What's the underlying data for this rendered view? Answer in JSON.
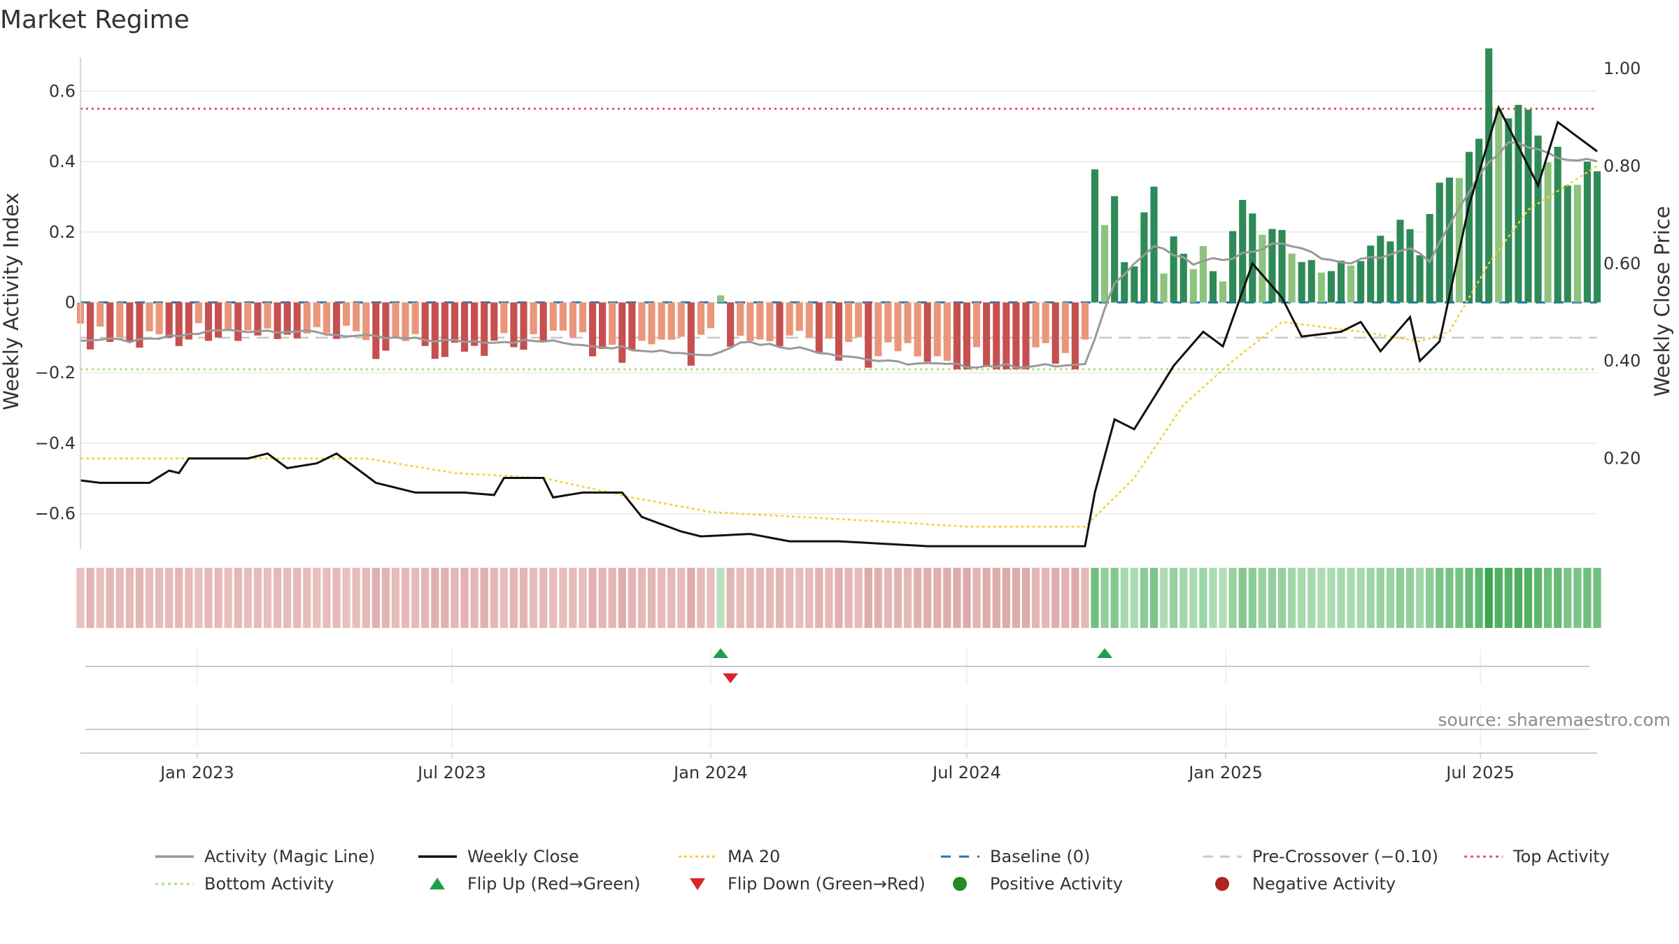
{
  "title": "Market Regime",
  "source": "source: sharemaestro.com",
  "chart_data": {
    "type": "bar",
    "x_range": [
      "2022-10-10",
      "2025-09-22"
    ],
    "x_ticks": [
      {
        "date": "2023-01-01",
        "label": "Jan 2023"
      },
      {
        "date": "2023-07-01",
        "label": "Jul 2023"
      },
      {
        "date": "2024-01-01",
        "label": "Jan 2024"
      },
      {
        "date": "2024-07-01",
        "label": "Jul 2024"
      },
      {
        "date": "2025-01-01",
        "label": "Jan 2025"
      },
      {
        "date": "2025-07-01",
        "label": "Jul 2025"
      }
    ],
    "left_axis": {
      "label": "Weekly Activity Index",
      "range": [
        -0.7,
        0.7
      ],
      "ticks": [
        0.6,
        0.4,
        0.2,
        0,
        -0.2,
        -0.4,
        -0.6
      ],
      "tick_labels": [
        "0.6",
        "0.4",
        "0.2",
        "0",
        "−0.2",
        "−0.4",
        "−0.6"
      ]
    },
    "right_axis": {
      "label": "Weekly Close Price",
      "range": [
        0.0,
        1.0
      ],
      "ticks": [
        1.0,
        0.8,
        0.6,
        0.4,
        0.2
      ],
      "tick_labels": [
        "1.00",
        "0.80",
        "0.60",
        "0.40",
        "0.20"
      ]
    },
    "reference_lines": {
      "top_activity": 0.55,
      "bottom_activity": -0.19,
      "pre_crossover": -0.1,
      "baseline": 0
    },
    "activity_anchors": [
      [
        "2022-10-10",
        -0.1
      ],
      [
        "2022-11-21",
        -0.12
      ],
      [
        "2023-01-02",
        -0.08
      ],
      [
        "2023-03-06",
        -0.09
      ],
      [
        "2023-05-08",
        -0.12
      ],
      [
        "2023-07-03",
        -0.12
      ],
      [
        "2023-09-04",
        -0.11
      ],
      [
        "2023-11-06",
        -0.14
      ],
      [
        "2023-12-25",
        -0.15
      ],
      [
        "2024-01-08",
        -0.07
      ],
      [
        "2024-01-15",
        -0.12
      ],
      [
        "2024-03-04",
        -0.13
      ],
      [
        "2024-05-06",
        -0.17
      ],
      [
        "2024-07-01",
        -0.18
      ],
      [
        "2024-09-16",
        -0.18
      ],
      [
        "2024-09-23",
        -0.16
      ],
      [
        "2024-09-30",
        0.42
      ],
      [
        "2024-10-07",
        0.22
      ],
      [
        "2024-10-14",
        0.27
      ],
      [
        "2024-10-21",
        0.12
      ],
      [
        "2024-10-28",
        0.1
      ],
      [
        "2024-11-04",
        0.24
      ],
      [
        "2024-11-11",
        0.29
      ],
      [
        "2024-11-18",
        0.09
      ],
      [
        "2024-11-25",
        0.18
      ],
      [
        "2024-12-02",
        0.16
      ],
      [
        "2024-12-09",
        0.11
      ],
      [
        "2024-12-16",
        0.16
      ],
      [
        "2024-12-23",
        0.09
      ],
      [
        "2024-12-30",
        0.06
      ],
      [
        "2025-01-13",
        0.3
      ],
      [
        "2025-01-20",
        0.22
      ],
      [
        "2025-02-10",
        0.18
      ],
      [
        "2025-03-10",
        0.09
      ],
      [
        "2025-04-07",
        0.12
      ],
      [
        "2025-05-05",
        0.23
      ],
      [
        "2025-05-19",
        0.15
      ],
      [
        "2025-06-09",
        0.39
      ],
      [
        "2025-06-16",
        0.36
      ],
      [
        "2025-06-30",
        0.43
      ],
      [
        "2025-07-07",
        0.65
      ],
      [
        "2025-07-14",
        0.63
      ],
      [
        "2025-07-21",
        0.49
      ],
      [
        "2025-07-28",
        0.51
      ],
      [
        "2025-08-11",
        0.46
      ],
      [
        "2025-08-18",
        0.4
      ],
      [
        "2025-09-22",
        0.37
      ]
    ],
    "magic_line_anchors": [
      [
        "2022-10-10",
        -0.105
      ],
      [
        "2022-11-21",
        -0.11
      ],
      [
        "2023-01-16",
        -0.08
      ],
      [
        "2023-03-06",
        -0.08
      ],
      [
        "2023-05-08",
        -0.1
      ],
      [
        "2023-07-03",
        -0.11
      ],
      [
        "2023-09-04",
        -0.11
      ],
      [
        "2023-11-06",
        -0.13
      ],
      [
        "2024-01-01",
        -0.15
      ],
      [
        "2024-01-22",
        -0.11
      ],
      [
        "2024-03-04",
        -0.13
      ],
      [
        "2024-05-06",
        -0.17
      ],
      [
        "2024-07-01",
        -0.18
      ],
      [
        "2024-09-23",
        -0.18
      ],
      [
        "2024-10-14",
        0.06
      ],
      [
        "2024-11-11",
        0.16
      ],
      [
        "2024-12-09",
        0.11
      ],
      [
        "2025-01-06",
        0.13
      ],
      [
        "2025-02-10",
        0.17
      ],
      [
        "2025-03-24",
        0.11
      ],
      [
        "2025-04-21",
        0.13
      ],
      [
        "2025-05-12",
        0.15
      ],
      [
        "2025-05-26",
        0.12
      ],
      [
        "2025-06-30",
        0.36
      ],
      [
        "2025-07-21",
        0.46
      ],
      [
        "2025-08-25",
        0.41
      ],
      [
        "2025-09-22",
        0.4
      ]
    ],
    "weekly_close_anchors": [
      [
        "2022-10-10",
        0.155
      ],
      [
        "2022-10-24",
        0.15
      ],
      [
        "2022-11-28",
        0.15
      ],
      [
        "2022-12-12",
        0.175
      ],
      [
        "2022-12-19",
        0.17
      ],
      [
        "2022-12-26",
        0.2
      ],
      [
        "2023-02-06",
        0.2
      ],
      [
        "2023-02-20",
        0.21
      ],
      [
        "2023-03-06",
        0.18
      ],
      [
        "2023-03-27",
        0.19
      ],
      [
        "2023-04-10",
        0.21
      ],
      [
        "2023-04-24",
        0.18
      ],
      [
        "2023-05-08",
        0.15
      ],
      [
        "2023-06-05",
        0.13
      ],
      [
        "2023-07-10",
        0.13
      ],
      [
        "2023-07-31",
        0.125
      ],
      [
        "2023-08-07",
        0.16
      ],
      [
        "2023-09-04",
        0.16
      ],
      [
        "2023-09-11",
        0.12
      ],
      [
        "2023-10-02",
        0.13
      ],
      [
        "2023-10-30",
        0.13
      ],
      [
        "2023-11-13",
        0.08
      ],
      [
        "2023-12-11",
        0.05
      ],
      [
        "2023-12-25",
        0.04
      ],
      [
        "2024-01-29",
        0.045
      ],
      [
        "2024-02-26",
        0.03
      ],
      [
        "2024-04-01",
        0.03
      ],
      [
        "2024-06-03",
        0.02
      ],
      [
        "2024-09-23",
        0.02
      ],
      [
        "2024-09-30",
        0.13
      ],
      [
        "2024-10-14",
        0.28
      ],
      [
        "2024-10-28",
        0.26
      ],
      [
        "2024-11-25",
        0.39
      ],
      [
        "2024-12-16",
        0.46
      ],
      [
        "2024-12-30",
        0.43
      ],
      [
        "2025-01-20",
        0.6
      ],
      [
        "2025-02-10",
        0.53
      ],
      [
        "2025-02-24",
        0.45
      ],
      [
        "2025-03-24",
        0.46
      ],
      [
        "2025-04-07",
        0.48
      ],
      [
        "2025-04-21",
        0.42
      ],
      [
        "2025-05-12",
        0.49
      ],
      [
        "2025-05-19",
        0.4
      ],
      [
        "2025-06-02",
        0.44
      ],
      [
        "2025-06-23",
        0.72
      ],
      [
        "2025-07-14",
        0.92
      ],
      [
        "2025-07-28",
        0.84
      ],
      [
        "2025-08-11",
        0.76
      ],
      [
        "2025-08-25",
        0.89
      ],
      [
        "2025-09-22",
        0.83
      ]
    ],
    "ma20_anchors": [
      [
        "2022-10-10",
        0.2
      ],
      [
        "2023-05-01",
        0.2
      ],
      [
        "2023-07-03",
        0.17
      ],
      [
        "2023-09-04",
        0.16
      ],
      [
        "2023-11-06",
        0.12
      ],
      [
        "2024-01-01",
        0.09
      ],
      [
        "2024-03-04",
        0.08
      ],
      [
        "2024-05-06",
        0.07
      ],
      [
        "2024-07-01",
        0.06
      ],
      [
        "2024-09-23",
        0.06
      ],
      [
        "2024-10-28",
        0.16
      ],
      [
        "2024-12-02",
        0.31
      ],
      [
        "2025-01-06",
        0.4
      ],
      [
        "2025-02-10",
        0.48
      ],
      [
        "2025-03-10",
        0.47
      ],
      [
        "2025-04-07",
        0.46
      ],
      [
        "2025-05-19",
        0.44
      ],
      [
        "2025-06-09",
        0.46
      ],
      [
        "2025-07-07",
        0.6
      ],
      [
        "2025-08-04",
        0.71
      ],
      [
        "2025-09-22",
        0.8
      ]
    ],
    "flip_up": [
      "2024-01-08",
      "2024-10-07"
    ],
    "flip_down": [
      "2024-01-15"
    ],
    "legend": [
      "Activity (Magic Line)",
      "Weekly Close",
      "MA 20",
      "Baseline (0)",
      "Pre-Crossover (−0.10)",
      "Top Activity",
      "Bottom Activity",
      "Flip Up (Red→Green)",
      "Flip Down (Green→Red)",
      "Positive Activity",
      "Negative Activity"
    ],
    "grid": true,
    "legend_placement": "bottom"
  },
  "colors": {
    "neg_dark": "#c5504f",
    "neg_light": "#e9967a",
    "pos_dark": "#2e8b57",
    "pos_light": "#8cc47f",
    "magic": "#999999",
    "close": "#111111",
    "ma": "#f0d238",
    "baseline": "#1f77b4",
    "pre": "#c8c8c8",
    "top": "#e8546f",
    "bottom": "#a8e08a",
    "flip_up": "#1e9e4a",
    "flip_down": "#d62728",
    "pos_dot": "#228b22",
    "neg_dot": "#b22222"
  }
}
